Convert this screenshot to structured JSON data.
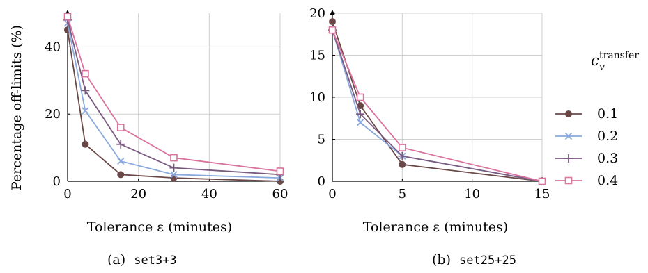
{
  "chart_data": [
    {
      "type": "line",
      "ylabel": "Percentage off-limits (%)",
      "xlabel": "Tolerance ε (minutes)",
      "caption_prefix": "(a)",
      "caption_name": "set3+3",
      "xlim": [
        0,
        60
      ],
      "ylim": [
        0,
        50
      ],
      "xticks": [
        0,
        20,
        40,
        60
      ],
      "yticks": [
        0,
        20,
        40
      ],
      "grid": true,
      "series": [
        {
          "name": "0.1",
          "x": [
            0,
            5,
            15,
            30,
            60
          ],
          "y": [
            45,
            11,
            2,
            1,
            0
          ]
        },
        {
          "name": "0.2",
          "x": [
            0,
            5,
            15,
            30,
            60
          ],
          "y": [
            47,
            21,
            6,
            2,
            1
          ]
        },
        {
          "name": "0.3",
          "x": [
            0,
            5,
            15,
            30,
            60
          ],
          "y": [
            48,
            27,
            11,
            4,
            2
          ]
        },
        {
          "name": "0.4",
          "x": [
            0,
            5,
            15,
            30,
            60
          ],
          "y": [
            49,
            32,
            16,
            7,
            3
          ]
        }
      ]
    },
    {
      "type": "line",
      "ylabel": "",
      "xlabel": "Tolerance ε (minutes)",
      "caption_prefix": "(b)",
      "caption_name": "set25+25",
      "xlim": [
        0,
        15
      ],
      "ylim": [
        0,
        20
      ],
      "xticks": [
        0,
        5,
        10,
        15
      ],
      "yticks": [
        0,
        5,
        10,
        15,
        20
      ],
      "grid": true,
      "series": [
        {
          "name": "0.1",
          "x": [
            0,
            2,
            5,
            15
          ],
          "y": [
            19,
            9,
            2,
            0
          ]
        },
        {
          "name": "0.2",
          "x": [
            0,
            2,
            5,
            15
          ],
          "y": [
            18,
            7,
            3,
            0
          ]
        },
        {
          "name": "0.3",
          "x": [
            0,
            2,
            5,
            15
          ],
          "y": [
            18,
            8,
            3,
            0
          ]
        },
        {
          "name": "0.4",
          "x": [
            0,
            2,
            5,
            15
          ],
          "y": [
            18,
            10,
            4,
            0
          ]
        }
      ]
    }
  ],
  "legend": {
    "title_base": "c",
    "title_sub": "v",
    "title_sup": "transfer",
    "placement": "right",
    "items": [
      {
        "label": "0.1",
        "color": "#6b4848",
        "marker": "circle"
      },
      {
        "label": "0.2",
        "color": "#89a9dd",
        "marker": "cross"
      },
      {
        "label": "0.3",
        "color": "#7a5a80",
        "marker": "plus"
      },
      {
        "label": "0.4",
        "color": "#d9739d",
        "marker": "square"
      }
    ]
  }
}
